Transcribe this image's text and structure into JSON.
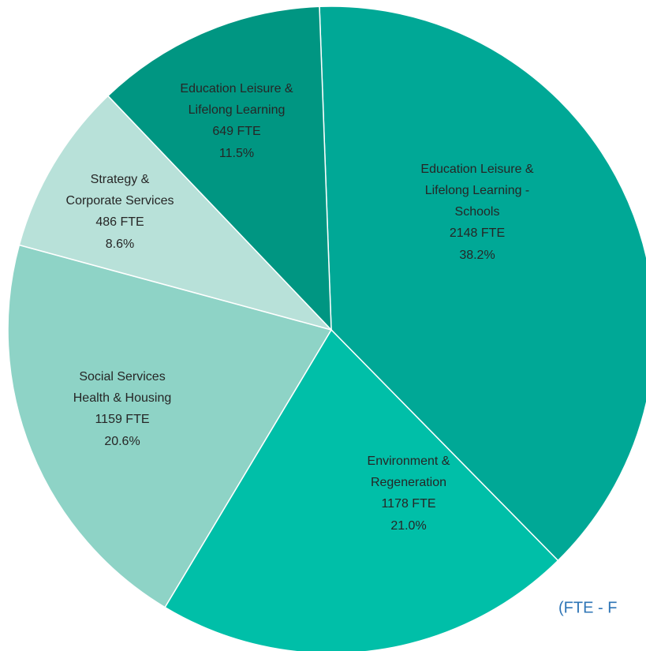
{
  "chart_data": {
    "type": "pie",
    "categories": [
      [
        "Education Leisure &",
        "Lifelong Learning -",
        "Schools"
      ],
      [
        "Environment &",
        "Regeneration"
      ],
      [
        "Social Services",
        "Health & Housing"
      ],
      [
        "Strategy &",
        "Corporate Services"
      ],
      [
        "Education Leisure &",
        "Lifelong Learning"
      ]
    ],
    "values": [
      2148,
      1178,
      1159,
      486,
      649
    ],
    "value_labels": [
      "2148 FTE",
      "1178 FTE",
      "1159 FTE",
      "486 FTE",
      "649 FTE"
    ],
    "percentages": [
      38.2,
      21.0,
      20.6,
      8.6,
      11.5
    ],
    "percentage_labels": [
      "38.2%",
      "21.0%",
      "20.6%",
      "8.6%",
      "11.5%"
    ],
    "colors": [
      "#00a896",
      "#00bfa8",
      "#8ed3c6",
      "#b8e1d9",
      "#009682"
    ],
    "note": "(FTE - F"
  }
}
